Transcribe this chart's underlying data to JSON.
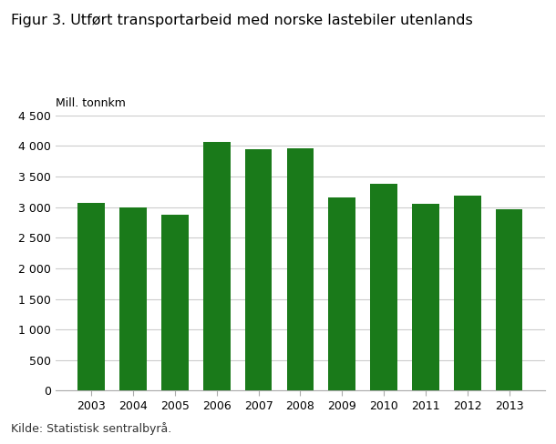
{
  "title": "Figur 3. Utført transportarbeid med norske lastebiler utenlands",
  "ylabel": "Mill. tonnkm",
  "categories": [
    "2003",
    "2004",
    "2005",
    "2006",
    "2007",
    "2008",
    "2009",
    "2010",
    "2011",
    "2012",
    "2013"
  ],
  "values": [
    3070,
    3000,
    2870,
    4070,
    3950,
    3960,
    3160,
    3390,
    3050,
    3190,
    2960
  ],
  "bar_color": "#1a7a1a",
  "ylim": [
    0,
    4500
  ],
  "yticks": [
    0,
    500,
    1000,
    1500,
    2000,
    2500,
    3000,
    3500,
    4000,
    4500
  ],
  "ytick_labels": [
    "0",
    "500",
    "1 000",
    "1 500",
    "2 000",
    "2 500",
    "3 000",
    "3 500",
    "4 000",
    "4 500"
  ],
  "source_text": "Kilde: Statistisk sentralbyrå.",
  "title_fontsize": 11.5,
  "ylabel_fontsize": 9,
  "tick_fontsize": 9,
  "source_fontsize": 9,
  "background_color": "#ffffff",
  "grid_color": "#cccccc"
}
